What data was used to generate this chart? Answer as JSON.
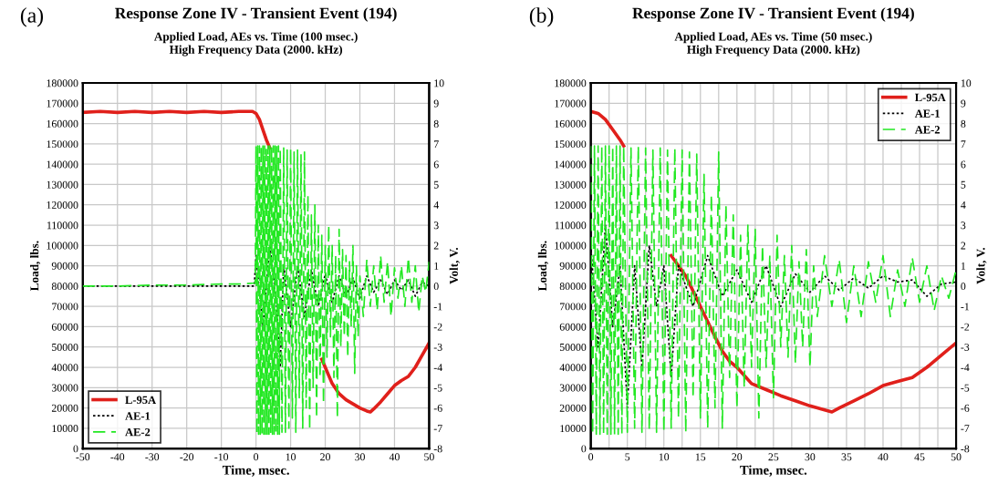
{
  "chart_data": [
    {
      "type": "line",
      "title": "Response Zone IV - Transient Event (194)",
      "subtitle": "Applied Load, AEs vs. Time (100 msec.)\nHigh Frequency Data (2000. kHz)",
      "xlabel": "Time, msec.",
      "ylabel": "Load, lbs.",
      "y2label": "Volt, V.",
      "annotations": [
        "(a)"
      ],
      "xlim": [
        -50,
        50
      ],
      "xticks": [
        -50,
        -40,
        -30,
        -20,
        -10,
        0,
        10,
        20,
        30,
        40,
        50
      ],
      "ylim": [
        0,
        180000
      ],
      "yticks": [
        0,
        10000,
        20000,
        30000,
        40000,
        50000,
        60000,
        70000,
        80000,
        90000,
        100000,
        110000,
        120000,
        130000,
        140000,
        150000,
        160000,
        170000,
        180000
      ],
      "y2lim": [
        -8,
        10
      ],
      "y2ticks": [
        -8,
        -7,
        -6,
        -5,
        -4,
        -3,
        -2,
        -1,
        0,
        1,
        2,
        3,
        4,
        5,
        6,
        7,
        8,
        9,
        10
      ],
      "grid": true,
      "legend": "bottom left",
      "series": [
        {
          "name": "L-95A",
          "color": "#e0201b",
          "line_style": "solid",
          "x": [
            -50,
            -45,
            -40,
            -35,
            -30,
            -25,
            -20,
            -15,
            -10,
            -5,
            -1,
            0,
            1,
            2,
            3,
            4,
            5,
            19,
            20,
            22,
            24,
            26,
            28,
            30,
            32,
            33,
            34,
            36,
            38,
            40,
            42,
            44,
            46,
            48,
            50
          ],
          "values": [
            165500,
            166000,
            165500,
            166000,
            165500,
            166000,
            165500,
            166000,
            165500,
            166000,
            166000,
            165000,
            162000,
            157000,
            152000,
            148000,
            null,
            44000,
            40000,
            32000,
            27000,
            24000,
            22000,
            20000,
            18500,
            18000,
            19500,
            23000,
            27000,
            31000,
            33500,
            35500,
            40000,
            46000,
            52000
          ]
        },
        {
          "name": "AE-1",
          "color": "#000000",
          "line_style": "dotted",
          "axis": "y2",
          "x": [
            -50,
            -25,
            -0.5,
            0,
            2,
            4,
            6,
            7,
            8,
            10,
            12,
            14,
            16,
            18,
            20,
            22,
            24,
            26,
            28,
            30,
            32,
            34,
            36,
            38,
            40,
            42,
            44,
            46,
            48,
            50
          ],
          "values": [
            0,
            0,
            0,
            1.5,
            -2,
            2,
            -1,
            -4,
            1,
            -2,
            1,
            -1.5,
            0.8,
            -1,
            0.6,
            -0.8,
            0.5,
            -0.5,
            0.4,
            -0.6,
            0.5,
            -0.3,
            0.3,
            -0.4,
            0.3,
            -0.2,
            0.3,
            -0.5,
            0.2,
            0
          ]
        },
        {
          "name": "AE-2",
          "color": "#22e822",
          "line_style": "dashed",
          "axis": "y2",
          "x": [
            -50,
            -40,
            -30,
            -20,
            -10,
            -5,
            -0.2,
            0,
            0.25,
            0.5,
            0.75,
            1,
            1.25,
            1.5,
            1.75,
            2,
            2.25,
            2.5,
            2.75,
            3,
            3.25,
            3.5,
            3.75,
            4,
            4.25,
            4.5,
            4.75,
            5,
            5.25,
            5.5,
            5.75,
            6,
            6.25,
            6.5,
            6.75,
            7,
            7.5,
            8,
            8.5,
            9,
            9.5,
            10,
            10.5,
            11,
            11.5,
            12,
            12.5,
            13,
            13.5,
            14,
            14.5,
            15,
            15.5,
            16,
            16.5,
            17,
            17.5,
            18,
            18.5,
            19,
            19.5,
            20,
            20.5,
            21,
            21.5,
            22,
            22.5,
            23,
            23.5,
            24,
            24.5,
            25,
            25.5,
            26,
            26.5,
            27,
            27.5,
            28,
            28.5,
            29,
            29.5,
            30,
            31,
            32,
            33,
            34,
            35,
            36,
            37,
            38,
            39,
            40,
            41,
            42,
            43,
            44,
            45,
            46,
            47,
            48,
            49,
            50
          ],
          "values": [
            0,
            0,
            0.05,
            0.05,
            0.1,
            0.1,
            0.15,
            6.9,
            -7.3,
            6.9,
            -7.3,
            6.9,
            -7.3,
            6.9,
            -7.3,
            6.9,
            -7.3,
            6.9,
            -7.3,
            6.9,
            -7.3,
            6.9,
            -7.3,
            6.9,
            -7.3,
            6.9,
            -7.3,
            6.9,
            -7.3,
            6.9,
            -7.3,
            6.9,
            -7.3,
            6.9,
            -7.3,
            6.8,
            -7.2,
            6.8,
            -7.2,
            6.7,
            -7.0,
            6.8,
            -6.5,
            6.6,
            -7.2,
            6.7,
            -5.5,
            6.5,
            -7.0,
            6.6,
            -6.0,
            4.5,
            -7.1,
            3.5,
            -5.0,
            4.0,
            -6.5,
            3.0,
            -4.5,
            2.5,
            -5.8,
            2.0,
            -3.5,
            3.0,
            -2.5,
            2.0,
            -4.5,
            1.5,
            -6.5,
            2.8,
            -3.0,
            1.8,
            -2.5,
            1.5,
            -3.5,
            1.2,
            -2.0,
            2.0,
            -4.3,
            1.0,
            -2.5,
            0.5,
            -1.5,
            1.3,
            -1.0,
            1.0,
            -1.2,
            1.5,
            -0.8,
            1.2,
            -1.5,
            0.9,
            -0.6,
            1.0,
            -1.0,
            1.4,
            -0.8,
            1.0,
            -1.3,
            0.5,
            -0.3,
            1.2
          ]
        }
      ]
    },
    {
      "type": "line",
      "title": "Response Zone IV - Transient Event (194)",
      "subtitle": "Applied Load, AEs vs. Time (50 msec.)\nHigh Frequency Data (2000. kHz)",
      "xlabel": "Time, msec.",
      "ylabel": "Load, lbs.",
      "y2label": "Volt, V.",
      "annotations": [
        "(b)"
      ],
      "xlim": [
        0,
        50
      ],
      "xticks": [
        0,
        {
          "value": 2.5,
          "label": null
        },
        5,
        {
          "value": 7.5,
          "label": null
        },
        10,
        {
          "value": 12.5,
          "label": null
        },
        15,
        {
          "value": 17.5,
          "label": null
        },
        20,
        {
          "value": 22.5,
          "label": null
        },
        25,
        {
          "value": 27.5,
          "label": null
        },
        30,
        {
          "value": 32.5,
          "label": null
        },
        35,
        {
          "value": 37.5,
          "label": null
        },
        40,
        {
          "value": 42.5,
          "label": null
        },
        45,
        {
          "value": 47.5,
          "label": null
        },
        50
      ],
      "ylim": [
        0,
        180000
      ],
      "yticks": [
        0,
        10000,
        20000,
        30000,
        40000,
        50000,
        60000,
        70000,
        80000,
        90000,
        100000,
        110000,
        120000,
        130000,
        140000,
        150000,
        160000,
        170000,
        180000
      ],
      "y2lim": [
        -8,
        10
      ],
      "y2ticks": [
        -8,
        -7,
        -6,
        -5,
        -4,
        -3,
        -2,
        -1,
        0,
        1,
        2,
        3,
        4,
        5,
        6,
        7,
        8,
        9,
        10
      ],
      "grid": true,
      "legend": "top right",
      "series": [
        {
          "name": "L-95A",
          "color": "#e0201b",
          "line_style": "solid",
          "x": [
            0,
            1,
            2,
            3,
            4,
            4.5,
            5,
            11,
            13,
            15,
            17,
            18,
            19,
            20,
            22,
            24,
            26,
            28,
            30,
            32,
            33,
            34,
            36,
            38,
            40,
            42,
            44,
            46,
            48,
            50
          ],
          "values": [
            166000,
            165000,
            162000,
            157000,
            152000,
            149000,
            null,
            95000,
            85000,
            70000,
            55000,
            48000,
            43000,
            40000,
            32000,
            29000,
            26000,
            23500,
            21000,
            19000,
            18000,
            20000,
            23500,
            27000,
            31000,
            33000,
            35000,
            40000,
            46000,
            52000
          ]
        },
        {
          "name": "AE-1",
          "color": "#000000",
          "line_style": "dotted",
          "axis": "y2",
          "x": [
            0,
            1,
            2,
            3,
            4,
            5,
            6,
            7,
            8,
            9,
            10,
            11,
            12,
            14,
            16,
            18,
            20,
            22,
            24,
            26,
            28,
            30,
            32,
            34,
            36,
            38,
            40,
            42,
            44,
            46,
            48,
            50
          ],
          "values": [
            2,
            -3,
            3,
            -2,
            1,
            -6,
            1,
            -4,
            2,
            -1,
            1,
            -4.5,
            1,
            -1,
            1.5,
            -0.5,
            0.8,
            -0.8,
            1,
            -1,
            0.6,
            -0.3,
            0.5,
            -0.2,
            0.4,
            -0.1,
            0.5,
            0.2,
            0.3,
            -0.5,
            0.1,
            0.2
          ]
        },
        {
          "name": "AE-2",
          "color": "#22e822",
          "line_style": "dashed",
          "axis": "y2",
          "x": [
            0,
            0.25,
            0.5,
            0.75,
            1,
            1.25,
            1.5,
            1.75,
            2,
            2.25,
            2.5,
            2.75,
            3,
            3.25,
            3.5,
            3.75,
            4,
            4.25,
            4.5,
            5,
            5.5,
            6,
            6.5,
            7,
            7.5,
            8,
            8.5,
            9,
            9.5,
            10,
            10.5,
            11,
            11.5,
            12,
            12.5,
            13,
            13.5,
            14,
            14.5,
            15,
            15.5,
            16,
            16.5,
            17,
            17.5,
            18,
            18.5,
            19,
            19.5,
            20,
            20.5,
            21,
            21.5,
            22,
            22.5,
            23,
            23.5,
            24,
            24.5,
            25,
            25.5,
            26,
            26.5,
            27,
            27.5,
            28,
            28.5,
            29,
            29.5,
            30,
            30.5,
            31,
            32,
            33,
            34,
            35,
            36,
            37,
            38,
            39,
            40,
            41,
            42,
            43,
            44,
            45,
            46,
            47,
            48,
            49,
            50
          ],
          "values": [
            6.9,
            -7.3,
            6.9,
            -7.3,
            6.9,
            -7.3,
            6.9,
            -7.3,
            6.9,
            -7.3,
            6.9,
            -7.3,
            6.9,
            -7.3,
            6.9,
            -7.3,
            6.9,
            -7.3,
            6.9,
            -7.2,
            6.8,
            -7.0,
            6.9,
            -7.2,
            6.8,
            -7.1,
            6.7,
            -7.2,
            6.8,
            -7.2,
            6.7,
            -7.0,
            6.8,
            -6.5,
            6.7,
            -7.2,
            6.6,
            -5.5,
            6.5,
            -6.5,
            5.5,
            -7.0,
            4.5,
            -6.0,
            6.6,
            -7.0,
            4.0,
            -4.5,
            3.5,
            -6.0,
            2.5,
            -5.0,
            3.0,
            -4.0,
            2.8,
            -6.5,
            2.0,
            -4.0,
            1.5,
            -5.5,
            2.5,
            -3.0,
            1.5,
            -3.5,
            2.0,
            -3.8,
            1.2,
            -3.0,
            1.8,
            -4.0,
            1.0,
            -1.5,
            1.5,
            -1.0,
            1.3,
            -1.8,
            1.0,
            -1.5,
            1.2,
            -0.8,
            1.5,
            -1.5,
            0.8,
            -1.0,
            1.4,
            -0.8,
            1.0,
            -1.2,
            0.5,
            -0.6,
            0.8
          ]
        }
      ]
    }
  ]
}
